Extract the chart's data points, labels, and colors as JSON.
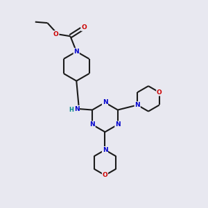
{
  "bg_color": "#e8e8f0",
  "bond_color": "#1a1a1a",
  "N_color": "#0000cc",
  "O_color": "#cc0000",
  "H_color": "#008888",
  "line_width": 1.5,
  "figsize": [
    3.0,
    3.0
  ],
  "dpi": 100,
  "xlim": [
    0,
    10
  ],
  "ylim": [
    0,
    10
  ]
}
